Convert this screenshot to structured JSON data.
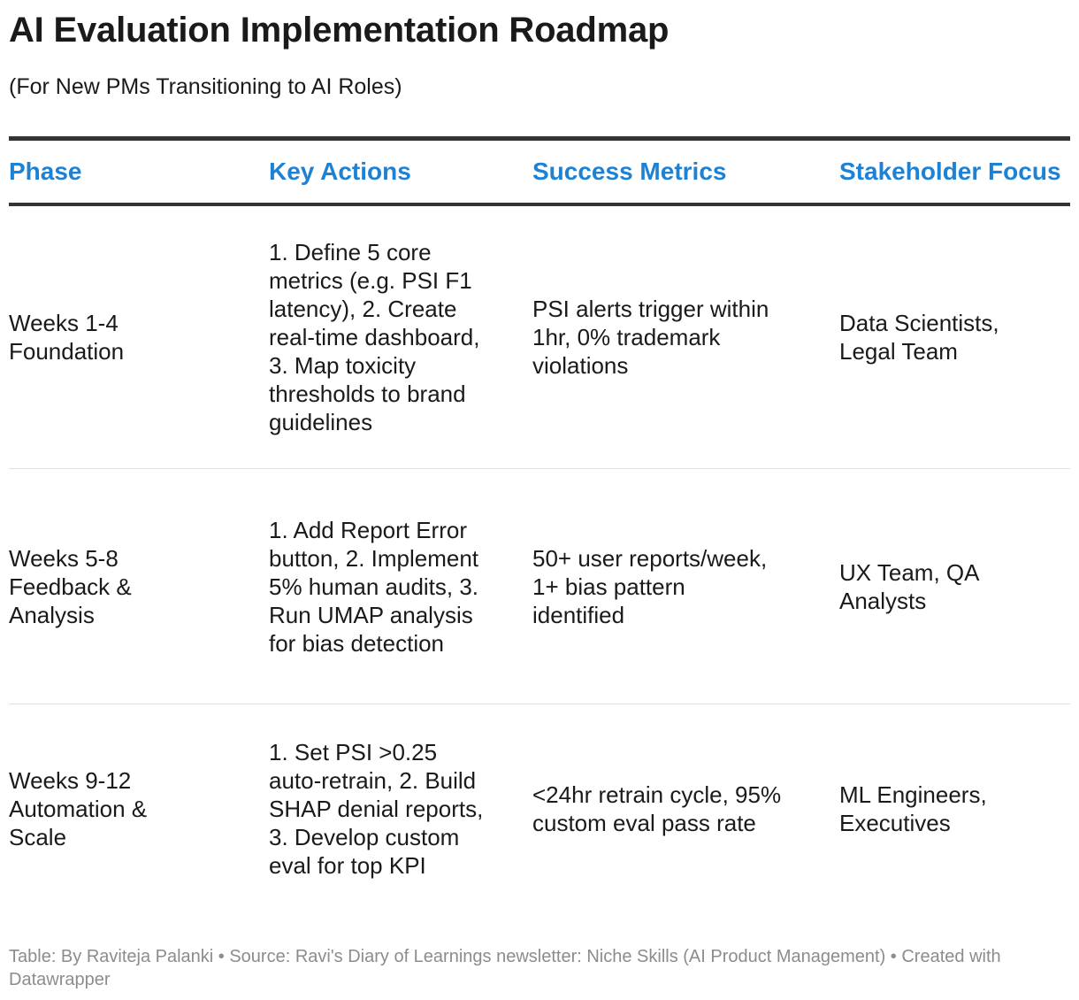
{
  "title": "AI Evaluation Implementation Roadmap",
  "subtitle": "(For New PMs Transitioning to AI Roles)",
  "table": {
    "headers": [
      "Phase",
      "Key Actions",
      "Success Metrics",
      "Stakeholder Focus"
    ],
    "rows": [
      {
        "phase": "Weeks 1-4 Foundation",
        "actions": "1. Define 5 core metrics (e.g. PSI F1 latency), 2. Create real-time dashboard, 3. Map toxicity thresholds to brand guidelines",
        "metrics": "PSI alerts trigger within 1hr, 0% trademark violations",
        "stakeholders": "Data Scientists, Legal Team"
      },
      {
        "phase": "Weeks 5-8 Feedback & Analysis",
        "actions": "1. Add Report Error button, 2. Implement 5% human audits, 3. Run UMAP analysis for bias detection",
        "metrics": "50+ user reports/week, 1+ bias pattern identified",
        "stakeholders": "UX Team, QA Analysts"
      },
      {
        "phase": "Weeks 9-12 Automation & Scale",
        "actions": "1. Set PSI >0.25 auto-retrain, 2. Build SHAP denial reports, 3. Develop custom eval for top KPI",
        "metrics": "<24hr retrain cycle, 95% custom eval pass rate",
        "stakeholders": "ML Engineers, Executives"
      }
    ]
  },
  "footer": "Table: By Raviteja Palanki  • Source: Ravi's Diary of Learnings newsletter: Niche Skills (AI Product Management) • Created with Datawrapper",
  "colors": {
    "header_text": "#1d81d4",
    "rule": "#333333",
    "footer_text": "#8c8c8c"
  }
}
